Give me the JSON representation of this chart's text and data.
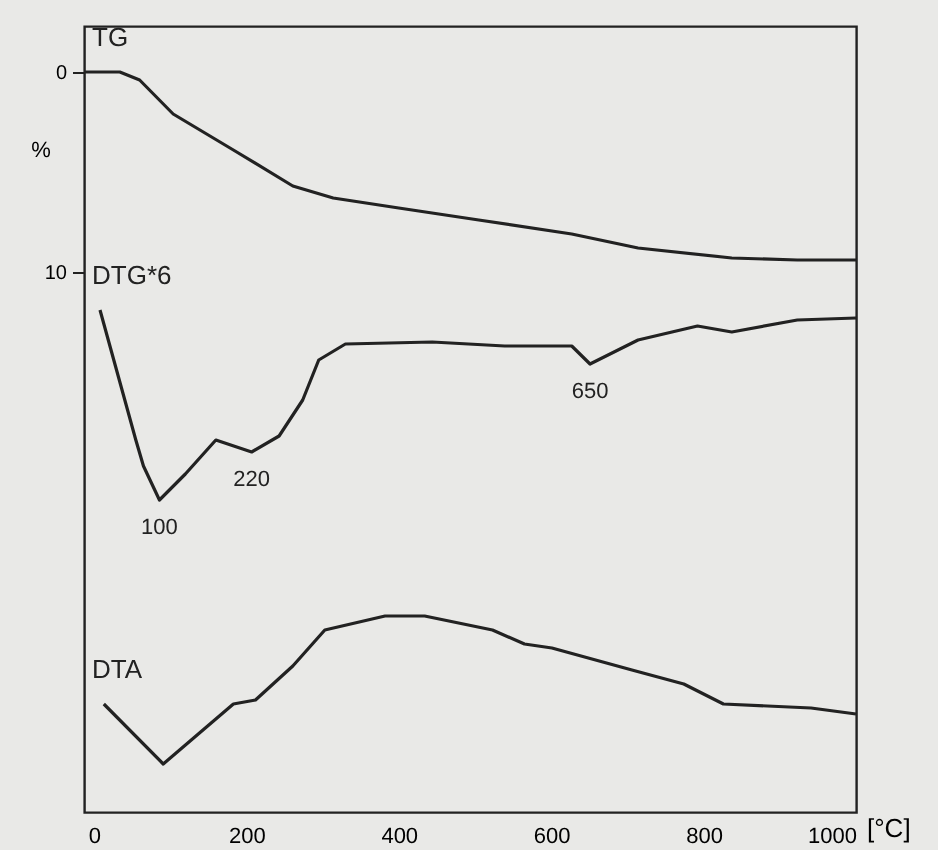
{
  "chart_data": {
    "type": "line",
    "xlabel": "[°C]",
    "ylabel": "%",
    "xlim": [
      -13,
      1000
    ],
    "ylim": [
      37,
      -2.3
    ],
    "xticks": [
      0,
      200,
      400,
      600,
      800,
      1000
    ],
    "yticks": [
      0,
      10
    ],
    "grid": false,
    "marker": "none",
    "line_style": "solid",
    "series": [
      {
        "name": "TG",
        "color": "#222222",
        "x": [
          -13,
          34,
          60,
          104,
          183,
          261,
          314,
          400,
          505,
          627,
          714,
          837,
          923,
          1000
        ],
        "values": [
          0,
          0,
          0.4,
          2.1,
          3.9,
          5.7,
          6.3,
          6.8,
          7.4,
          8.1,
          8.8,
          9.3,
          9.4,
          9.4
        ]
      },
      {
        "name": "DTG*6",
        "color": "#222222",
        "x": [
          8,
          55,
          65,
          86,
          120,
          160,
          207,
          243,
          274,
          295,
          330,
          444,
          539,
          627,
          651,
          714,
          792,
          837,
          923,
          1000
        ],
        "values": [
          11.9,
          18.4,
          19.7,
          21.4,
          20.1,
          18.4,
          19.0,
          18.2,
          16.4,
          14.4,
          13.6,
          13.5,
          13.7,
          13.7,
          14.6,
          13.4,
          12.7,
          13.0,
          12.4,
          12.3
        ]
      },
      {
        "name": "DTA",
        "color": "#222222",
        "x": [
          13,
          91,
          183,
          212,
          261,
          303,
          382,
          434,
          523,
          565,
          601,
          706,
          774,
          826,
          941,
          1000
        ],
        "values": [
          31.6,
          34.6,
          31.6,
          31.4,
          29.7,
          27.9,
          27.2,
          27.2,
          27.9,
          28.6,
          28.8,
          29.9,
          30.6,
          31.6,
          31.8,
          32.1
        ]
      }
    ],
    "annotations": [
      {
        "text": "100",
        "x": 86,
        "y": 21.4
      },
      {
        "text": "220",
        "x": 207,
        "y": 19.0
      },
      {
        "text": "650",
        "x": 651,
        "y": 14.6
      }
    ]
  }
}
